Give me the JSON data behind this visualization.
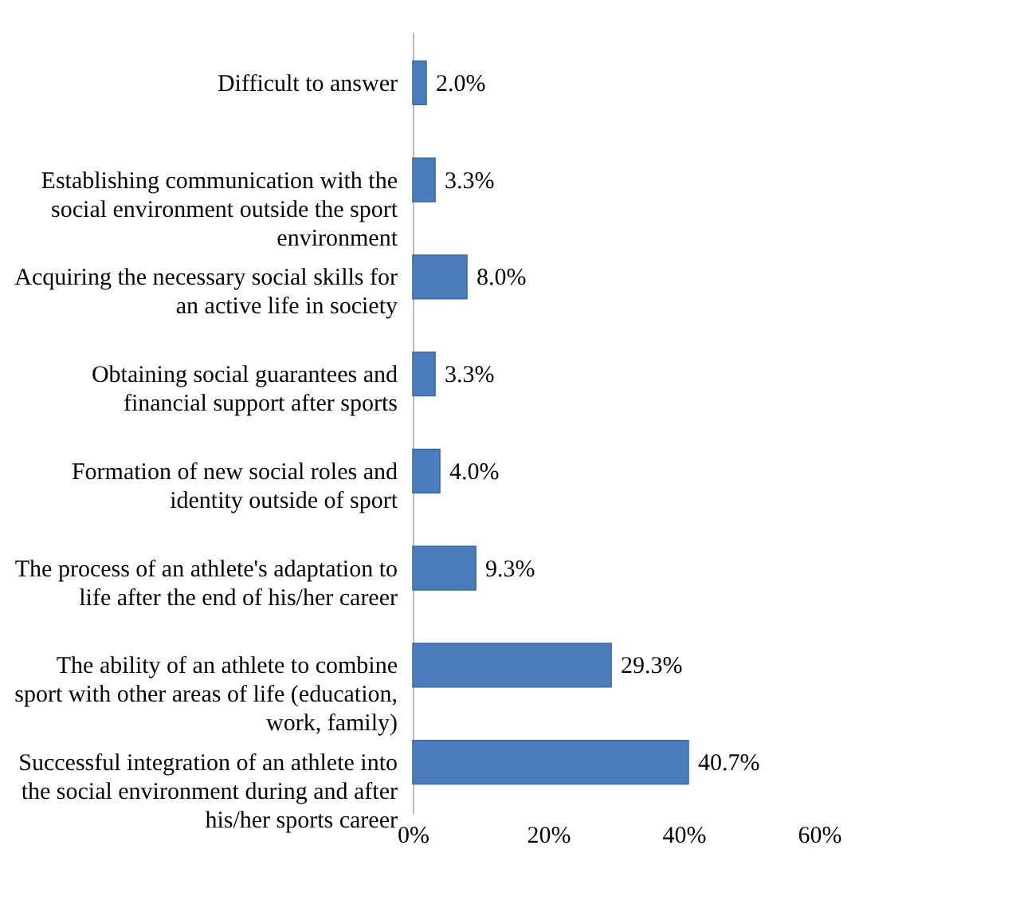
{
  "chart_data": {
    "type": "bar",
    "orientation": "horizontal",
    "categories": [
      "Difficult to answer",
      "Establishing communication with the\nsocial environment outside the sport\nenvironment",
      "Acquiring the necessary social skills for\nan active life in society",
      "Obtaining social guarantees and\nfinancial support after sports",
      "Formation of new social roles and\nidentity outside of sport",
      "The process of an athlete's adaptation to\nlife after the end of his/her career",
      "The ability of an athlete to combine\nsport with other areas of life (education,\nwork, family)",
      "Successful integration of an athlete into\nthe social environment during and after\nhis/her sports career"
    ],
    "values": [
      2.0,
      3.3,
      8.0,
      3.3,
      4.0,
      9.3,
      29.3,
      40.7
    ],
    "value_labels": [
      "2.0%",
      "3.3%",
      "8.0%",
      "3.3%",
      "4.0%",
      "9.3%",
      "29.3%",
      "40.7%"
    ],
    "color": "#4a7ebb",
    "xlim": [
      0,
      60
    ],
    "xticks": [
      {
        "value": 0,
        "label": "0%"
      },
      {
        "value": 20,
        "label": "20%"
      },
      {
        "value": 40,
        "label": "40%"
      },
      {
        "value": 60,
        "label": "60%"
      }
    ],
    "grid": false
  }
}
